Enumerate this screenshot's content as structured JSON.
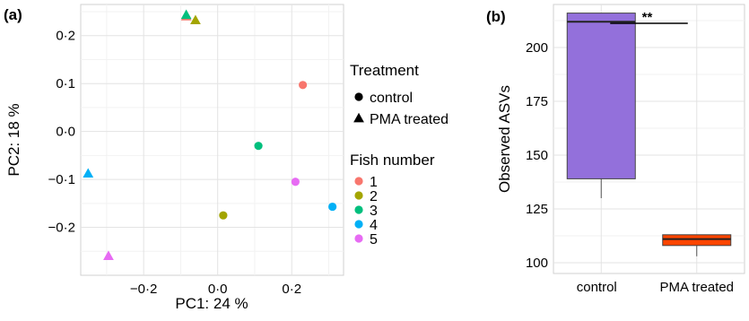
{
  "chart_data": [
    {
      "panel": "(a)",
      "type": "scatter",
      "xlabel": "PC1: 24 %",
      "ylabel": "PC2: 18 %",
      "xlim": [
        -0.37,
        0.34
      ],
      "ylim": [
        -0.3,
        0.265
      ],
      "x_ticks": [
        -0.2,
        0.0,
        0.2
      ],
      "y_ticks": [
        -0.2,
        -0.1,
        0.0,
        0.1,
        0.2
      ],
      "x_tick_labels": [
        "−0·2",
        "0·0",
        "0·2"
      ],
      "y_tick_labels": [
        "−0·2",
        "−0·1",
        "0·0",
        "0·1",
        "0·2"
      ],
      "grid": true,
      "legend_placement": "right",
      "legend": {
        "treatment_title": "Treatment",
        "treatment_entries": [
          {
            "label": "control",
            "shape": "circle"
          },
          {
            "label": "PMA treated",
            "shape": "triangle"
          }
        ],
        "fish_title": "Fish number",
        "fish_entries": [
          {
            "label": "1",
            "color": "#F8766D"
          },
          {
            "label": "2",
            "color": "#A3A500"
          },
          {
            "label": "3",
            "color": "#00BF7D"
          },
          {
            "label": "4",
            "color": "#00B0F6"
          },
          {
            "label": "5",
            "color": "#E76BF3"
          }
        ]
      },
      "points": [
        {
          "fish": "1",
          "treatment": "control",
          "x": 0.23,
          "y": 0.097
        },
        {
          "fish": "2",
          "treatment": "control",
          "x": 0.015,
          "y": -0.175
        },
        {
          "fish": "3",
          "treatment": "control",
          "x": 0.11,
          "y": -0.03
        },
        {
          "fish": "4",
          "treatment": "control",
          "x": 0.31,
          "y": -0.157
        },
        {
          "fish": "5",
          "treatment": "control",
          "x": 0.21,
          "y": -0.105
        },
        {
          "fish": "1",
          "treatment": "PMA treated",
          "x": -0.085,
          "y": 0.24
        },
        {
          "fish": "2",
          "treatment": "PMA treated",
          "x": -0.06,
          "y": 0.232
        },
        {
          "fish": "3",
          "treatment": "PMA treated",
          "x": -0.085,
          "y": 0.243
        },
        {
          "fish": "4",
          "treatment": "PMA treated",
          "x": -0.35,
          "y": -0.088
        },
        {
          "fish": "5",
          "treatment": "PMA treated",
          "x": -0.295,
          "y": -0.26
        }
      ]
    },
    {
      "panel": "(b)",
      "type": "box",
      "xlabel": "",
      "ylabel": "Observed ASVs",
      "ylim": [
        95,
        220
      ],
      "y_ticks": [
        100,
        125,
        150,
        175,
        200
      ],
      "y_tick_labels": [
        "100",
        "125",
        "150",
        "175",
        "200"
      ],
      "categories": [
        "control",
        "PMA treated"
      ],
      "grid": true,
      "significance": "**",
      "boxes": [
        {
          "category": "control",
          "min": 130,
          "q1": 139,
          "median": 212,
          "q3": 216,
          "max": 216,
          "color": "#9370DB"
        },
        {
          "category": "PMA treated",
          "min": 103,
          "q1": 108,
          "median": 111,
          "q3": 113,
          "max": 113,
          "color": "#FF4500"
        }
      ]
    }
  ]
}
